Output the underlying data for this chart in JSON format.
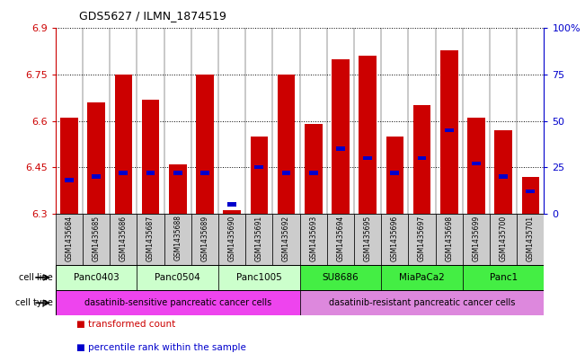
{
  "title": "GDS5627 / ILMN_1874519",
  "samples": [
    "GSM1435684",
    "GSM1435685",
    "GSM1435686",
    "GSM1435687",
    "GSM1435688",
    "GSM1435689",
    "GSM1435690",
    "GSM1435691",
    "GSM1435692",
    "GSM1435693",
    "GSM1435694",
    "GSM1435695",
    "GSM1435696",
    "GSM1435697",
    "GSM1435698",
    "GSM1435699",
    "GSM1435700",
    "GSM1435701"
  ],
  "transformed_count": [
    6.61,
    6.66,
    6.75,
    6.67,
    6.46,
    6.75,
    6.31,
    6.55,
    6.75,
    6.59,
    6.8,
    6.81,
    6.55,
    6.65,
    6.83,
    6.61,
    6.57,
    6.42
  ],
  "percentile": [
    18,
    20,
    22,
    22,
    22,
    22,
    5,
    25,
    22,
    22,
    35,
    30,
    22,
    30,
    45,
    27,
    20,
    12
  ],
  "ylim_min": 6.3,
  "ylim_max": 6.9,
  "yticks": [
    6.3,
    6.45,
    6.6,
    6.75,
    6.9
  ],
  "ytick_labels": [
    "6.3",
    "6.45",
    "6.6",
    "6.75",
    "6.9"
  ],
  "right_yticks_pct": [
    0,
    25,
    50,
    75,
    100
  ],
  "right_ytick_labels": [
    "0",
    "25",
    "50",
    "75",
    "100%"
  ],
  "bar_color": "#cc0000",
  "percentile_color": "#0000cc",
  "bar_width": 0.65,
  "cell_lines": [
    {
      "name": "Panc0403",
      "start": 0,
      "end": 3,
      "color": "#ccffcc"
    },
    {
      "name": "Panc0504",
      "start": 3,
      "end": 6,
      "color": "#ccffcc"
    },
    {
      "name": "Panc1005",
      "start": 6,
      "end": 9,
      "color": "#ccffcc"
    },
    {
      "name": "SU8686",
      "start": 9,
      "end": 12,
      "color": "#44ee44"
    },
    {
      "name": "MiaPaCa2",
      "start": 12,
      "end": 15,
      "color": "#44ee44"
    },
    {
      "name": "Panc1",
      "start": 15,
      "end": 18,
      "color": "#44ee44"
    }
  ],
  "cell_types": [
    {
      "name": "dasatinib-sensitive pancreatic cancer cells",
      "start": 0,
      "end": 9,
      "color": "#ee44ee"
    },
    {
      "name": "dasatinib-resistant pancreatic cancer cells",
      "start": 9,
      "end": 18,
      "color": "#dd88dd"
    }
  ],
  "legend_items": [
    {
      "label": "transformed count",
      "color": "#cc0000"
    },
    {
      "label": "percentile rank within the sample",
      "color": "#0000cc"
    }
  ],
  "ylabel_color": "#cc0000",
  "right_ylabel_color": "#0000cc",
  "tick_area_bg": "#cccccc",
  "title_fontsize": 9
}
